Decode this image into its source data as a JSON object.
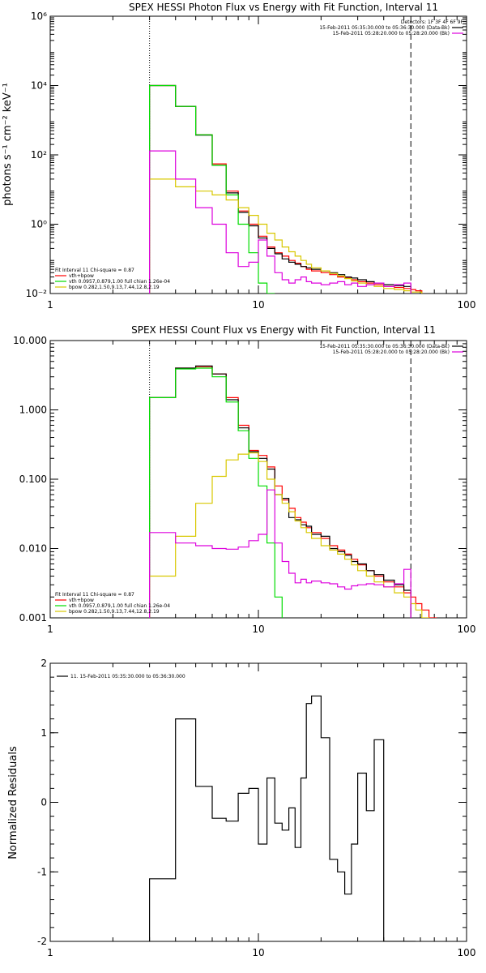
{
  "colors": {
    "red": "#ff0000",
    "green": "#00dd00",
    "yellow": "#d8c800",
    "magenta": "#dd00dd",
    "black": "#000000"
  },
  "chart_data": [
    {
      "type": "line",
      "title": "SPEX HESSI Photon Flux vs Energy with Fit Function, Interval 11",
      "ylabel": "photons s⁻¹ cm⁻² keV⁻¹",
      "xlabel": "",
      "xscale": "log",
      "yscale": "log",
      "xlim": [
        1,
        100
      ],
      "ylim": [
        0.01,
        1000000
      ],
      "x_ticks": [
        "1",
        "10",
        "100"
      ],
      "y_ticks": [
        {
          "value": 0.01,
          "label": "10⁻²"
        },
        {
          "value": 1,
          "label": "10⁰"
        },
        {
          "value": 100,
          "label": "10²"
        },
        {
          "value": 10000,
          "label": "10⁴"
        },
        {
          "value": 1000000,
          "label": "10⁶"
        }
      ],
      "vlines": [
        {
          "x": 3,
          "style": "dotted"
        },
        {
          "x": 54,
          "style": "dashed"
        }
      ],
      "legend_tr": {
        "title": "Detectors: 1F 3F 4F 6F 9F",
        "entries": [
          {
            "text": "15-Feb-2011 05:35:30.000 to 05:36:30.000 (Data-Bk)",
            "color": "#000000"
          },
          {
            "text": "15-Feb-2011 05:28:20.000 to 05:28:20.000 (Bk)",
            "color": "#dd00dd"
          }
        ]
      },
      "legend_bl": {
        "header": "Fit Interval  11    Chi-square = 0.87",
        "entries": [
          {
            "text": "vth+bpow",
            "color": "#ff0000"
          },
          {
            "text": "vth 0.0957,0.879,1.00  full chian 1.26e-04",
            "color": "#00dd00"
          },
          {
            "text": "bpow 0.282,1.50,9.13,7.44,12.8,2.19",
            "color": "#d8c800"
          }
        ]
      },
      "bin_edges": [
        3,
        4,
        5,
        6,
        7,
        8,
        9,
        10,
        11,
        12,
        13,
        14,
        15,
        16,
        17,
        18,
        20,
        22,
        24,
        26,
        28,
        30,
        33,
        36,
        40,
        45,
        50,
        54,
        57,
        61
      ],
      "series": [
        {
          "color": "#ff0000",
          "values": [
            10000,
            2500,
            380,
            55,
            9,
            2.4,
            1.0,
            0.45,
            0.22,
            0.15,
            0.12,
            0.09,
            0.075,
            0.06,
            0.05,
            0.045,
            0.04,
            0.035,
            0.03,
            0.028,
            0.025,
            0.022,
            0.02,
            0.018,
            0.016,
            0.015,
            0.014,
            0.013,
            0.012
          ]
        },
        {
          "color": "#000000",
          "values": [
            10000,
            2500,
            370,
            50,
            8,
            2.2,
            0.9,
            0.4,
            0.2,
            0.14,
            0.1,
            0.08,
            0.07,
            0.06,
            0.055,
            0.05,
            0.045,
            0.04,
            0.035,
            0.03,
            0.028,
            0.025,
            0.022,
            0.02,
            0.018,
            0.017,
            0.016
          ]
        },
        {
          "color": "#00dd00",
          "values": [
            10000,
            2500,
            380,
            50,
            7,
            1.0,
            0.15,
            0.02,
            0.01
          ]
        },
        {
          "color": "#d8c800",
          "values": [
            20,
            12,
            9,
            7,
            5,
            3,
            1.8,
            1.0,
            0.55,
            0.35,
            0.22,
            0.16,
            0.12,
            0.09,
            0.07,
            0.055,
            0.045,
            0.038,
            0.032,
            0.027,
            0.023,
            0.02,
            0.018,
            0.016,
            0.014,
            0.013,
            0.012,
            0.011,
            0.011
          ]
        },
        {
          "color": "#dd00dd",
          "values": [
            130,
            20,
            3,
            1.0,
            0.15,
            0.06,
            0.08,
            0.35,
            0.12,
            0.04,
            0.025,
            0.02,
            0.025,
            0.03,
            0.022,
            0.02,
            0.018,
            0.02,
            0.022,
            0.018,
            0.02,
            0.016,
            0.018,
            0.02,
            0.016,
            0.018,
            0.02
          ]
        }
      ]
    },
    {
      "type": "line",
      "title": "SPEX HESSI Count Flux vs Energy with Fit Function, Interval 11",
      "ylabel": "",
      "xlabel": "",
      "xscale": "log",
      "yscale": "log",
      "xlim": [
        1,
        100
      ],
      "ylim": [
        0.001,
        10
      ],
      "x_ticks": [
        "1",
        "10",
        "100"
      ],
      "y_ticks": [
        {
          "value": 0.001,
          "label": "0.001"
        },
        {
          "value": 0.01,
          "label": "0.010"
        },
        {
          "value": 0.1,
          "label": "0.100"
        },
        {
          "value": 1,
          "label": "1.000"
        },
        {
          "value": 10,
          "label": "10.000"
        }
      ],
      "vlines": [
        {
          "x": 3,
          "style": "dotted"
        },
        {
          "x": 54,
          "style": "dashed"
        }
      ],
      "legend_tr": {
        "title": "",
        "entries": [
          {
            "text": "15-Feb-2011 05:35:30.000 to 05:36:30.000 (Data-Bk)",
            "color": "#000000"
          },
          {
            "text": "15-Feb-2011 05:28:20.000 to 05:28:20.000 (Bk)",
            "color": "#dd00dd"
          }
        ]
      },
      "legend_bl": {
        "header": "Fit Interval  11    Chi-square = 0.87",
        "entries": [
          {
            "text": "vth+bpow",
            "color": "#ff0000"
          },
          {
            "text": "vth 0.0957,0.879,1.00  full chian 1.26e-04",
            "color": "#00dd00"
          },
          {
            "text": "bpow 0.282,1.50,9.13,7.44,12.8,2.19",
            "color": "#d8c800"
          }
        ]
      },
      "bin_edges": [
        3,
        4,
        5,
        6,
        7,
        8,
        9,
        10,
        11,
        12,
        13,
        14,
        15,
        16,
        17,
        18,
        20,
        22,
        24,
        26,
        28,
        30,
        33,
        36,
        40,
        45,
        50,
        54,
        57,
        61,
        66,
        72
      ],
      "series": [
        {
          "color": "#ff0000",
          "values": [
            1.5,
            4.0,
            4.2,
            3.3,
            1.5,
            0.6,
            0.26,
            0.22,
            0.15,
            0.08,
            0.05,
            0.038,
            0.028,
            0.024,
            0.02,
            0.017,
            0.014,
            0.011,
            0.0095,
            0.0083,
            0.007,
            0.0058,
            0.0048,
            0.004,
            0.0033,
            0.0028,
            0.0023,
            0.002,
            0.0016,
            0.0013,
            0.001
          ]
        },
        {
          "color": "#000000",
          "values": [
            1.5,
            4.0,
            4.3,
            3.3,
            1.4,
            0.55,
            0.25,
            0.2,
            0.14,
            0.06,
            0.053,
            0.028,
            0.026,
            0.022,
            0.021,
            0.016,
            0.015,
            0.01,
            0.009,
            0.008,
            0.0065,
            0.006,
            0.0048,
            0.0042,
            0.0035,
            0.003,
            0.0025
          ]
        },
        {
          "color": "#00dd00",
          "values": [
            1.5,
            3.9,
            4.0,
            3.0,
            1.3,
            0.5,
            0.2,
            0.08,
            0.012,
            0.002,
            0.0006
          ]
        },
        {
          "color": "#d8c800",
          "values": [
            0.004,
            0.015,
            0.045,
            0.11,
            0.19,
            0.23,
            0.24,
            0.18,
            0.1,
            0.06,
            0.045,
            0.034,
            0.025,
            0.02,
            0.017,
            0.014,
            0.011,
            0.0095,
            0.0083,
            0.007,
            0.0058,
            0.0048,
            0.004,
            0.0033,
            0.0028,
            0.0023,
            0.002,
            0.0016,
            0.0013,
            0.001,
            0.0008
          ]
        },
        {
          "color": "#dd00dd",
          "values": [
            0.017,
            0.012,
            0.011,
            0.01,
            0.0098,
            0.0105,
            0.013,
            0.016,
            0.07,
            0.012,
            0.0065,
            0.0044,
            0.0032,
            0.0036,
            0.0032,
            0.0034,
            0.0032,
            0.0031,
            0.0028,
            0.0026,
            0.0029,
            0.003,
            0.0031,
            0.003,
            0.0028,
            0.0031,
            0.005
          ]
        }
      ]
    },
    {
      "type": "line",
      "title": "",
      "ylabel": "Normalized Residuals",
      "xlabel": "",
      "xscale": "log",
      "yscale": "linear",
      "xlim": [
        1,
        100
      ],
      "ylim": [
        -2,
        2
      ],
      "x_ticks": [
        "1",
        "10",
        "100"
      ],
      "y_ticks": [
        {
          "value": -2,
          "label": "-2"
        },
        {
          "value": -1,
          "label": "-1"
        },
        {
          "value": 0,
          "label": "0"
        },
        {
          "value": 1,
          "label": "1"
        },
        {
          "value": 2,
          "label": "2"
        }
      ],
      "vlines": [],
      "legend_tr": null,
      "legend_bl": null,
      "legend_tl": {
        "text": "11. 15-Feb-2011 05:35:30.000 to 05:36:30.000",
        "color": "#000000"
      },
      "bin_edges": [
        3,
        4,
        5,
        6,
        7,
        8,
        9,
        10,
        11,
        12,
        13,
        14,
        15,
        16,
        17,
        18,
        20,
        22,
        24,
        26,
        28,
        30,
        33,
        36,
        40,
        45,
        50,
        54,
        57
      ],
      "series": [
        {
          "color": "#000000",
          "values": [
            -1.1,
            1.2,
            0.23,
            -0.23,
            -0.27,
            0.13,
            0.2,
            -0.6,
            0.35,
            -0.3,
            -0.4,
            -0.08,
            -0.65,
            0.35,
            1.42,
            1.53,
            0.93,
            -0.82,
            -1.0,
            -1.32,
            -0.6,
            0.42,
            -0.12,
            0.9,
            -2.0,
            -2.0,
            -2.0,
            -2.0
          ]
        }
      ],
      "step_start_y": -2.0,
      "step_end_y": -2.0
    }
  ]
}
